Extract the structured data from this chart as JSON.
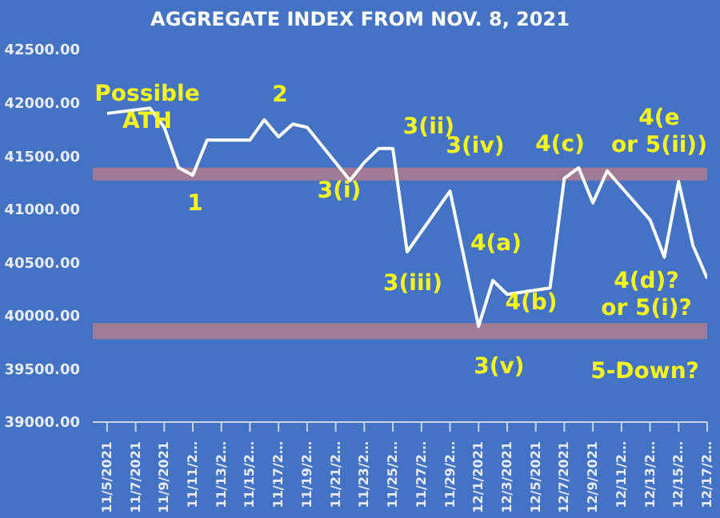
{
  "chart_data": {
    "type": "line",
    "title": "AGGREGATE INDEX FROM NOV. 8, 2021",
    "x": [
      "2021-11-05",
      "2021-11-08",
      "2021-11-09",
      "2021-11-10",
      "2021-11-11",
      "2021-11-12",
      "2021-11-15",
      "2021-11-16",
      "2021-11-17",
      "2021-11-18",
      "2021-11-19",
      "2021-11-22",
      "2021-11-23",
      "2021-11-24",
      "2021-11-25",
      "2021-11-26",
      "2021-11-29",
      "2021-12-01",
      "2021-12-02",
      "2021-12-03",
      "2021-12-06",
      "2021-12-07",
      "2021-12-08",
      "2021-12-09",
      "2021-12-10",
      "2021-12-13",
      "2021-12-14",
      "2021-12-15",
      "2021-12-16",
      "2021-12-17"
    ],
    "series": [
      {
        "color": "#ffffff",
        "values": [
          41900,
          41950,
          41770,
          41390,
          41320,
          41650,
          41650,
          41840,
          41680,
          41800,
          41770,
          41270,
          41440,
          41570,
          41570,
          40600,
          41170,
          39900,
          40330,
          40200,
          40260,
          41290,
          41390,
          41060,
          41360,
          40900,
          40550,
          41260,
          40660,
          40350
        ]
      }
    ],
    "xlim": [
      "2021-11-04",
      "2021-12-17"
    ],
    "xticks": [
      {
        "value": "2021-11-05",
        "label": "11/5/2021"
      },
      {
        "value": "2021-11-07",
        "label": "11/7/2021"
      },
      {
        "value": "2021-11-09",
        "label": "11/9/2021"
      },
      {
        "value": "2021-11-11",
        "label": "11/11/2…"
      },
      {
        "value": "2021-11-13",
        "label": "11/13/2…"
      },
      {
        "value": "2021-11-15",
        "label": "11/15/2…"
      },
      {
        "value": "2021-11-17",
        "label": "11/17/2…"
      },
      {
        "value": "2021-11-19",
        "label": "11/19/2…"
      },
      {
        "value": "2021-11-21",
        "label": "11/21/2…"
      },
      {
        "value": "2021-11-23",
        "label": "11/23/2…"
      },
      {
        "value": "2021-11-25",
        "label": "11/25/2…"
      },
      {
        "value": "2021-11-27",
        "label": "11/27/2…"
      },
      {
        "value": "2021-11-29",
        "label": "11/29/2…"
      },
      {
        "value": "2021-12-01",
        "label": "12/1/2021"
      },
      {
        "value": "2021-12-03",
        "label": "12/3/2021"
      },
      {
        "value": "2021-12-05",
        "label": "12/5/2021"
      },
      {
        "value": "2021-12-07",
        "label": "12/7/2021"
      },
      {
        "value": "2021-12-09",
        "label": "12/9/2021"
      },
      {
        "value": "2021-12-11",
        "label": "12/11/2…"
      },
      {
        "value": "2021-12-13",
        "label": "12/13/2…"
      },
      {
        "value": "2021-12-15",
        "label": "12/15/2…"
      },
      {
        "value": "2021-12-17",
        "label": "12/17/2…"
      }
    ],
    "ylim": [
      39000,
      42500
    ],
    "yticks": [
      {
        "value": 39000,
        "label": "39000.00"
      },
      {
        "value": 39500,
        "label": "39500.00"
      },
      {
        "value": 40000,
        "label": "40000.00"
      },
      {
        "value": 40500,
        "label": "40500.00"
      },
      {
        "value": 41000,
        "label": "41000.00"
      },
      {
        "value": 41500,
        "label": "41500.00"
      },
      {
        "value": 42000,
        "label": "42000.00"
      },
      {
        "value": 42500,
        "label": "42500.00"
      }
    ],
    "bands": [
      {
        "axis": "y",
        "from": 41270,
        "to": 41390,
        "color": "#c07f86"
      },
      {
        "axis": "y",
        "from": 39780,
        "to": 39930,
        "color": "#c07f86"
      }
    ],
    "annotations": [
      "Possible\nATH",
      "1",
      "2",
      "3(i)",
      "3(ii)",
      "3(iv)",
      "3(iii)",
      "4(a)",
      "4(b)",
      "3(v)",
      "4(c)",
      "4(e\nor 5(ii))",
      "4(d)?\nor 5(i)?",
      "5-Down?"
    ],
    "grid": false,
    "legend": false,
    "marker": "none",
    "line_style": "solid"
  }
}
